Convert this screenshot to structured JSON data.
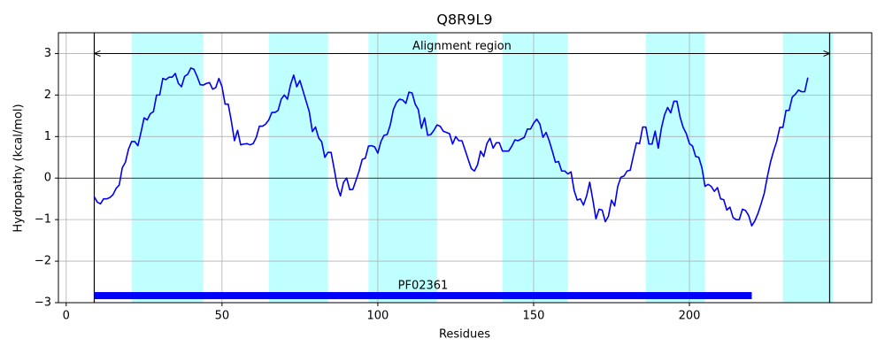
{
  "chart_data": {
    "type": "line",
    "title": "Q8R9L9",
    "x_label": "Residues",
    "y_label": "Hydropathy (kcal/mol)",
    "xlim": [
      -2.5,
      258.5
    ],
    "ylim": [
      -3,
      3.5
    ],
    "xticks": [
      0,
      50,
      100,
      150,
      200
    ],
    "yticks": [
      {
        "value": -3,
        "label": "−3"
      },
      {
        "value": -2,
        "label": "−2"
      },
      {
        "value": -1,
        "label": "−1"
      },
      0,
      1,
      2,
      3
    ],
    "grid": true,
    "hline": 0,
    "color": "#0000ee",
    "region_color": "#bfffff",
    "regions": [
      [
        21,
        44
      ],
      [
        65,
        84
      ],
      [
        97,
        119
      ],
      [
        140,
        161
      ],
      [
        186,
        205
      ],
      [
        230,
        246
      ]
    ],
    "alignment": {
      "label": "Alignment region",
      "start": 9,
      "end": 245,
      "y": 3
    },
    "domain": {
      "label": "PF02361",
      "start": 9,
      "end": 220,
      "y": -2.83,
      "color": "#0000ff"
    },
    "x": [
      9,
      10,
      11,
      12,
      13,
      14,
      15,
      16,
      17,
      18,
      19,
      20,
      21,
      22,
      23,
      24,
      25,
      26,
      27,
      28,
      29,
      30,
      31,
      32,
      33,
      34,
      35,
      36,
      37,
      38,
      39,
      40,
      41,
      42,
      43,
      44,
      45,
      46,
      47,
      48,
      49,
      50,
      51,
      52,
      53,
      54,
      55,
      56,
      57,
      58,
      59,
      60,
      61,
      62,
      63,
      64,
      65,
      66,
      67,
      68,
      69,
      70,
      71,
      72,
      73,
      74,
      75,
      76,
      77,
      78,
      79,
      80,
      81,
      82,
      83,
      84,
      85,
      86,
      87,
      88,
      89,
      90,
      91,
      92,
      93,
      94,
      95,
      96,
      97,
      98,
      99,
      100,
      101,
      102,
      103,
      104,
      105,
      106,
      107,
      108,
      109,
      110,
      111,
      112,
      113,
      114,
      115,
      116,
      117,
      118,
      119,
      120,
      121,
      122,
      123,
      124,
      125,
      126,
      127,
      128,
      129,
      130,
      131,
      132,
      133,
      134,
      135,
      136,
      137,
      138,
      139,
      140,
      141,
      142,
      143,
      144,
      145,
      146,
      147,
      148,
      149,
      150,
      151,
      152,
      153,
      154,
      155,
      156,
      157,
      158,
      159,
      160,
      161,
      162,
      163,
      164,
      165,
      166,
      167,
      168,
      169,
      170,
      171,
      172,
      173,
      174,
      175,
      176,
      177,
      178,
      179,
      180,
      181,
      182,
      183,
      184,
      185,
      186,
      187,
      188,
      189,
      190,
      191,
      192,
      193,
      194,
      195,
      196,
      197,
      198,
      199,
      200,
      201,
      202,
      203,
      204,
      205,
      206,
      207,
      208,
      209,
      210,
      211,
      212,
      213,
      214,
      215,
      216,
      217,
      218,
      219,
      220,
      221,
      222,
      223,
      224,
      225,
      226,
      227,
      228,
      229,
      230,
      231,
      232,
      233,
      234,
      235,
      236,
      237,
      238
    ],
    "values": [
      -0.45,
      -0.58,
      -0.62,
      -0.5,
      -0.5,
      -0.47,
      -0.4,
      -0.25,
      -0.17,
      0.25,
      0.38,
      0.7,
      0.88,
      0.88,
      0.78,
      1.1,
      1.45,
      1.4,
      1.55,
      1.6,
      2.0,
      2.0,
      2.4,
      2.37,
      2.43,
      2.43,
      2.52,
      2.28,
      2.2,
      2.45,
      2.5,
      2.65,
      2.62,
      2.45,
      2.25,
      2.24,
      2.28,
      2.3,
      2.14,
      2.18,
      2.4,
      2.2,
      1.78,
      1.78,
      1.37,
      0.9,
      1.15,
      0.8,
      0.82,
      0.83,
      0.8,
      0.83,
      0.98,
      1.25,
      1.25,
      1.3,
      1.4,
      1.58,
      1.58,
      1.63,
      1.9,
      2.0,
      1.9,
      2.25,
      2.48,
      2.2,
      2.35,
      2.1,
      1.85,
      1.6,
      1.12,
      1.23,
      0.97,
      0.87,
      0.5,
      0.62,
      0.62,
      0.22,
      -0.2,
      -0.43,
      -0.1,
      0,
      -0.28,
      -0.27,
      -0.05,
      0.17,
      0.45,
      0.48,
      0.77,
      0.78,
      0.75,
      0.6,
      0.88,
      1.03,
      1.05,
      1.28,
      1.65,
      1.82,
      1.9,
      1.88,
      1.8,
      2.07,
      2.05,
      1.78,
      1.65,
      1.2,
      1.45,
      1.03,
      1.05,
      1.15,
      1.28,
      1.25,
      1.13,
      1.1,
      1.07,
      0.82,
      1.0,
      0.9,
      0.9,
      0.68,
      0.45,
      0.23,
      0.17,
      0.32,
      0.65,
      0.52,
      0.83,
      0.96,
      0.72,
      0.85,
      0.85,
      0.65,
      0.65,
      0.65,
      0.77,
      0.92,
      0.9,
      0.94,
      0.98,
      1.18,
      1.18,
      1.32,
      1.42,
      1.3,
      0.98,
      1.1,
      0.9,
      0.65,
      0.38,
      0.4,
      0.17,
      0.17,
      0.1,
      0.15,
      -0.3,
      -0.53,
      -0.5,
      -0.65,
      -0.43,
      -0.1,
      -0.52,
      -0.98,
      -0.75,
      -0.77,
      -1.05,
      -0.92,
      -0.53,
      -0.67,
      -0.2,
      0.02,
      0.05,
      0.17,
      0.19,
      0.53,
      0.85,
      0.83,
      1.23,
      1.23,
      0.82,
      0.82,
      1.13,
      0.72,
      1.2,
      1.52,
      1.7,
      1.57,
      1.85,
      1.85,
      1.47,
      1.22,
      1.07,
      0.83,
      0.77,
      0.52,
      0.5,
      0.25,
      -0.2,
      -0.15,
      -0.2,
      -0.32,
      -0.23,
      -0.5,
      -0.52,
      -0.77,
      -0.7,
      -0.95,
      -1.0,
      -1.0,
      -0.75,
      -0.78,
      -0.9,
      -1.15,
      -1.03,
      -0.85,
      -0.62,
      -0.37,
      0.03,
      0.38,
      0.65,
      0.88,
      1.22,
      1.22,
      1.63,
      1.63,
      1.95,
      2.02,
      2.12,
      2.08,
      2.08,
      2.42
    ]
  }
}
